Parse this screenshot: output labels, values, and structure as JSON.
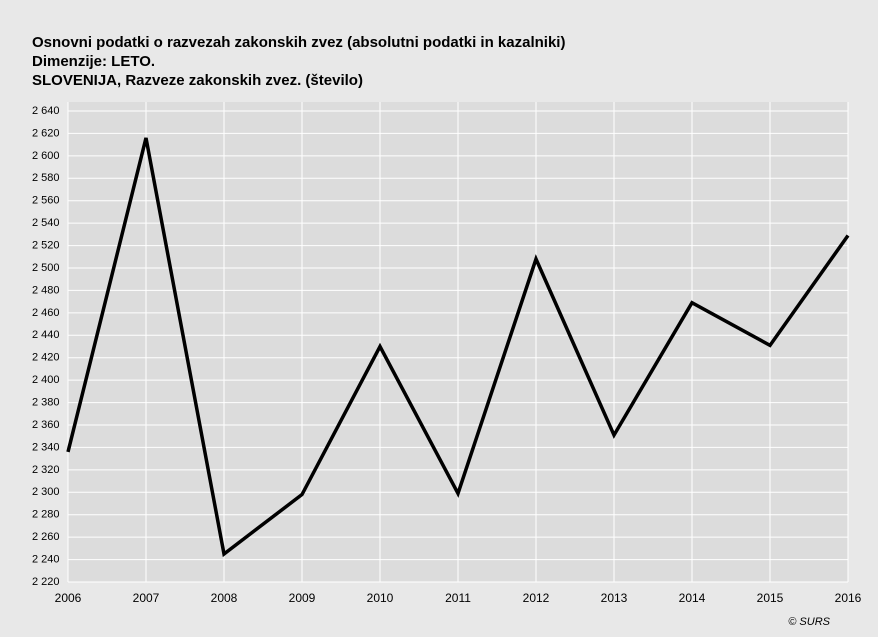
{
  "chart_data": {
    "type": "line",
    "title": "Osnovni podatki o razvezah zakonskih zvez (absolutni podatki in kazalniki)",
    "subtitle": "Dimenzije: LETO.",
    "credit": "© SURS",
    "x": [
      2006,
      2007,
      2008,
      2009,
      2010,
      2011,
      2012,
      2013,
      2014,
      2015,
      2016
    ],
    "xlim": [
      2006,
      2016
    ],
    "xticks": [
      2006,
      2007,
      2008,
      2009,
      2010,
      2011,
      2012,
      2013,
      2014,
      2015,
      2016
    ],
    "series": [
      {
        "name": "SLOVENIJA, Razveze zakonskih zvez. (število)",
        "color": "#000000",
        "values": [
          2336,
          2616,
          2245,
          2298,
          2430,
          2299,
          2508,
          2351,
          2469,
          2431,
          2529
        ]
      }
    ],
    "ylim": [
      2220,
      2640
    ],
    "yticks": [
      {
        "value": 2220,
        "label": "2 220"
      },
      {
        "value": 2240,
        "label": "2 240"
      },
      {
        "value": 2260,
        "label": "2 260"
      },
      {
        "value": 2280,
        "label": "2 280"
      },
      {
        "value": 2300,
        "label": "2 300"
      },
      {
        "value": 2320,
        "label": "2 320"
      },
      {
        "value": 2340,
        "label": "2 340"
      },
      {
        "value": 2360,
        "label": "2 360"
      },
      {
        "value": 2380,
        "label": "2 380"
      },
      {
        "value": 2400,
        "label": "2 400"
      },
      {
        "value": 2420,
        "label": "2 420"
      },
      {
        "value": 2440,
        "label": "2 440"
      },
      {
        "value": 2460,
        "label": "2 460"
      },
      {
        "value": 2480,
        "label": "2 480"
      },
      {
        "value": 2500,
        "label": "2 500"
      },
      {
        "value": 2520,
        "label": "2 520"
      },
      {
        "value": 2540,
        "label": "2 540"
      },
      {
        "value": 2560,
        "label": "2 560"
      },
      {
        "value": 2580,
        "label": "2 580"
      },
      {
        "value": 2600,
        "label": "2 600"
      },
      {
        "value": 2620,
        "label": "2 620"
      },
      {
        "value": 2640,
        "label": "2 640"
      }
    ],
    "grid": true
  }
}
